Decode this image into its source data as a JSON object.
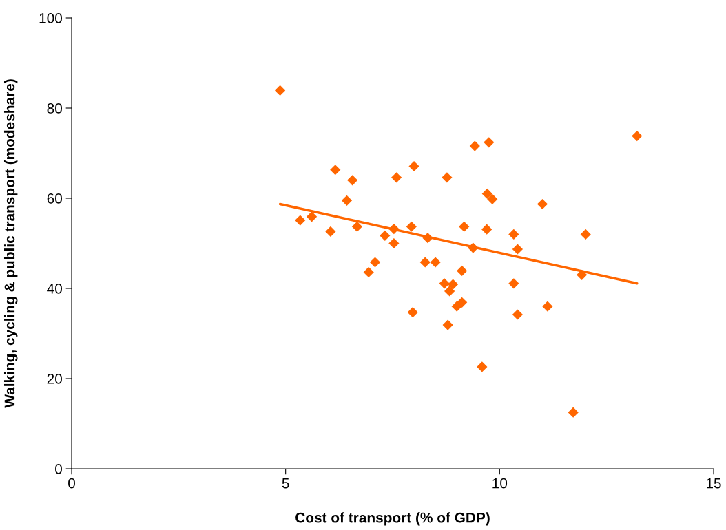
{
  "chart_data": {
    "type": "scatter",
    "xlabel": "Cost of transport (% of GDP)",
    "ylabel": "Walking, cycling & public transport (modeshare)",
    "xlim": [
      0,
      15
    ],
    "xticks": [
      0,
      5,
      10,
      15
    ],
    "ylim": [
      0,
      100
    ],
    "yticks": [
      0,
      20,
      40,
      60,
      80,
      100
    ],
    "grid": false,
    "series": [
      {
        "color": "#ff6600",
        "marker": "diamond",
        "x": [
          4.87,
          9.42,
          9.75,
          6.16,
          6.56,
          7.59,
          8.0,
          8.77,
          6.43,
          5.34,
          5.61,
          6.05,
          6.67,
          7.53,
          7.94,
          7.32,
          8.32,
          7.53,
          9.17,
          9.7,
          9.38,
          7.09,
          6.94,
          8.26,
          8.5,
          9.12,
          8.71,
          8.91,
          8.83,
          9.0,
          9.12,
          7.97,
          13.21,
          9.71,
          9.83,
          11.0,
          10.33,
          12.01,
          10.42,
          11.92,
          10.33,
          11.12,
          10.42,
          9.59,
          11.72,
          8.79
        ],
        "values": [
          83.9,
          71.6,
          72.4,
          66.3,
          64.0,
          64.6,
          67.1,
          64.6,
          59.5,
          55.1,
          55.9,
          52.6,
          53.7,
          53.2,
          53.7,
          51.7,
          51.2,
          50.0,
          53.7,
          53.1,
          49.0,
          45.8,
          43.6,
          45.8,
          45.8,
          43.9,
          41.1,
          40.9,
          39.4,
          36.0,
          36.9,
          34.7,
          73.8,
          61.0,
          59.8,
          58.7,
          52.0,
          52.0,
          48.7,
          43.0,
          41.1,
          36.0,
          34.2,
          22.6,
          12.5,
          31.9
        ]
      },
      {
        "type": "line",
        "color": "#ff6600",
        "marker": "none",
        "line_style": "solid",
        "x": [
          4.87,
          13.21
        ],
        "values": [
          58.7,
          41.1
        ]
      }
    ]
  }
}
